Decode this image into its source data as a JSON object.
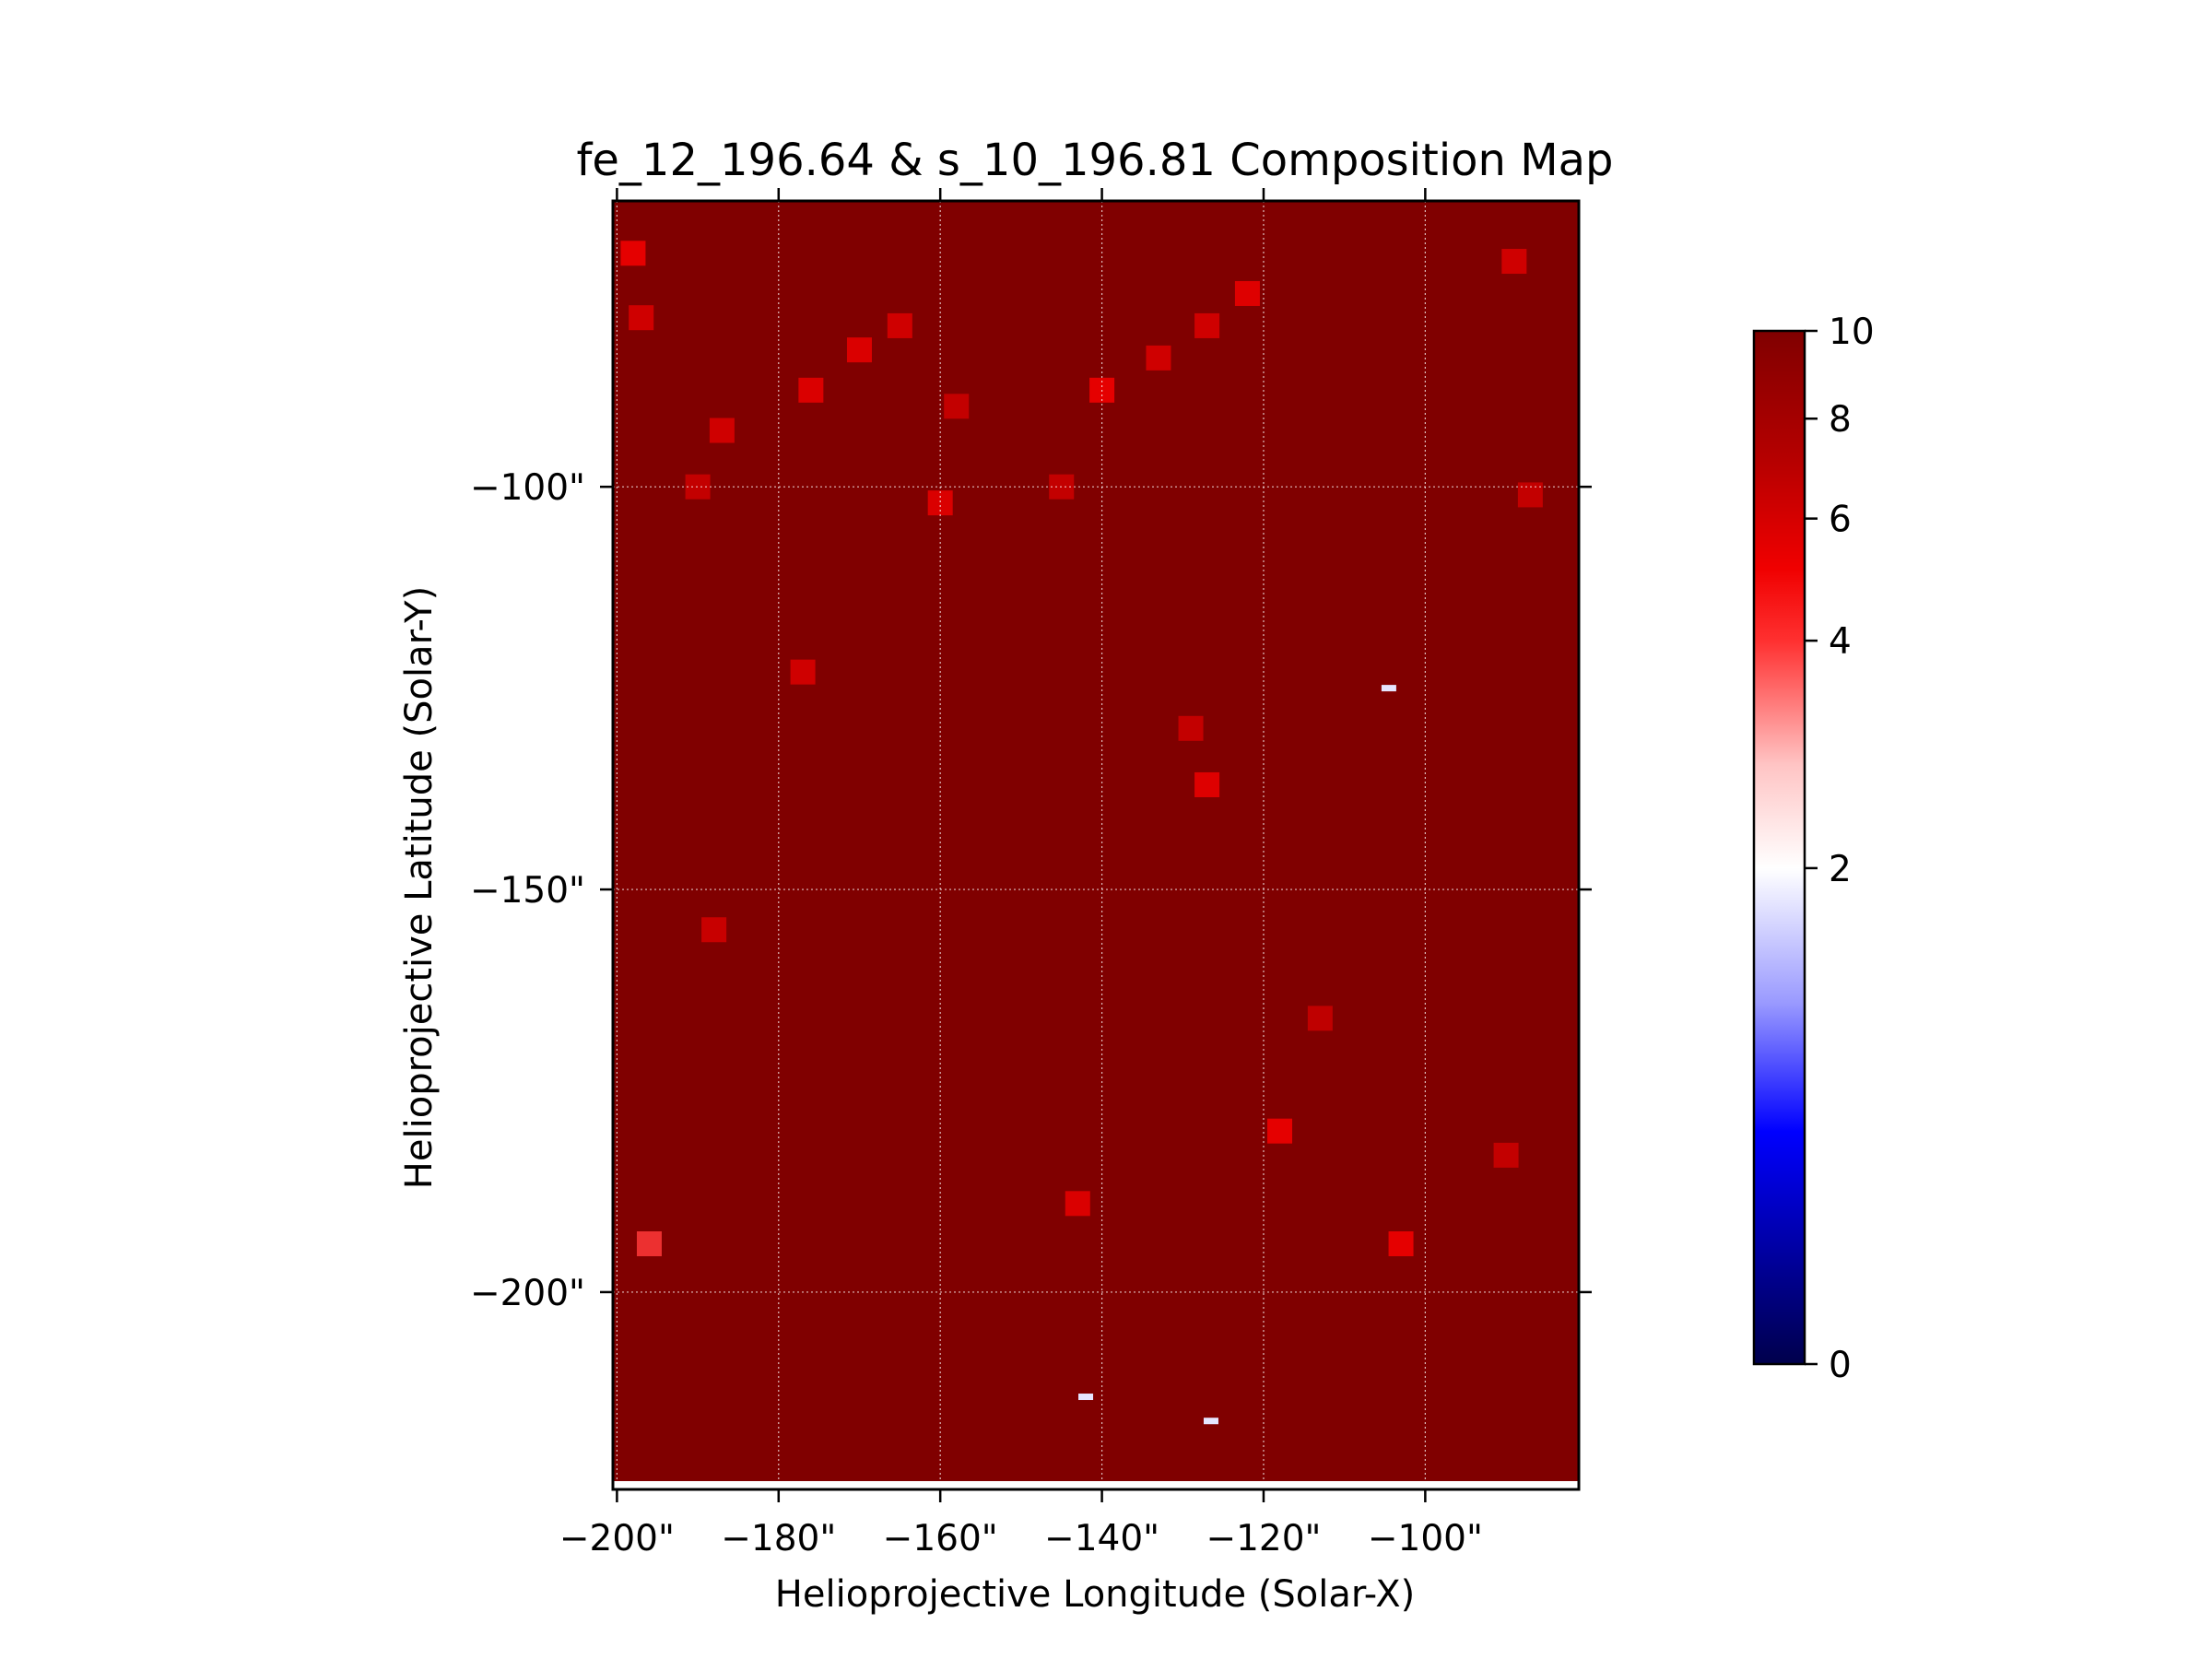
{
  "chart_data": {
    "type": "heatmap",
    "title": "fe_12_196.64 & s_10_196.81 Composition Map",
    "xlabel": "Helioprojective Longitude (Solar-X)",
    "ylabel": "Helioprojective Latitude (Solar-Y)",
    "x_ticks": [
      "−200\"",
      "−180\"",
      "−160\"",
      "−140\"",
      "−120\"",
      "−100\""
    ],
    "y_ticks": [
      "−100\"",
      "−150\"",
      "−200\""
    ],
    "x_tick_values": [
      -200,
      -180,
      -160,
      -140,
      -120,
      -100
    ],
    "y_tick_values": [
      -100,
      -150,
      -200
    ],
    "xlim": [
      -200.5,
      -81
    ],
    "ylim": [
      -224.5,
      -64.5
    ],
    "grid": true,
    "background_value": 10,
    "colorbar": {
      "ticks": [
        "0",
        "2",
        "4",
        "6",
        "8",
        "10"
      ],
      "tick_values": [
        0,
        2,
        4,
        6,
        8,
        10
      ],
      "range": [
        0,
        10
      ],
      "center": 2,
      "colormap": "seismic",
      "colors": {
        "low": "#00004c",
        "mid": "#ffffff",
        "high": "#800000"
      }
    },
    "features": [
      {
        "label": "upper-left bright patch",
        "x": -198,
        "y": -71,
        "value": 5.5
      },
      {
        "label": "upper-left bright patch",
        "x": -197,
        "y": -79,
        "value": 6.5
      },
      {
        "label": "left column enhancement",
        "x": -187,
        "y": -93,
        "value": 6.5
      },
      {
        "label": "left column enhancement",
        "x": -190,
        "y": -100,
        "value": 7.0
      },
      {
        "label": "upper arc",
        "x": -170,
        "y": -83,
        "value": 6.0
      },
      {
        "label": "upper arc",
        "x": -176,
        "y": -88,
        "value": 6.0
      },
      {
        "label": "upper arc",
        "x": -165,
        "y": -80,
        "value": 6.5
      },
      {
        "label": "upper arc",
        "x": -158,
        "y": -90,
        "value": 7.0
      },
      {
        "label": "diagonal loop",
        "x": -140,
        "y": -88,
        "value": 5.5
      },
      {
        "label": "diagonal loop",
        "x": -133,
        "y": -84,
        "value": 6.5
      },
      {
        "label": "diagonal loop",
        "x": -127,
        "y": -80,
        "value": 6.5
      },
      {
        "label": "diagonal loop",
        "x": -122,
        "y": -76,
        "value": 5.8
      },
      {
        "label": "central patch",
        "x": -160,
        "y": -102,
        "value": 6.0
      },
      {
        "label": "central patch",
        "x": -145,
        "y": -100,
        "value": 7.0
      },
      {
        "label": "right edge patch",
        "x": -87,
        "y": -101,
        "value": 7.0
      },
      {
        "label": "upper-right spot",
        "x": -89,
        "y": -72,
        "value": 6.5
      },
      {
        "label": "mid-left spot",
        "x": -177,
        "y": -123,
        "value": 6.5
      },
      {
        "label": "mid spot",
        "x": -127,
        "y": -137,
        "value": 5.8
      },
      {
        "label": "mid spot",
        "x": -129,
        "y": -130,
        "value": 7.0
      },
      {
        "label": "left lower spot",
        "x": -188,
        "y": -155,
        "value": 6.8
      },
      {
        "label": "lower-right spot",
        "x": -118,
        "y": -180,
        "value": 5.5
      },
      {
        "label": "lower spot",
        "x": -143,
        "y": -189,
        "value": 6.0
      },
      {
        "label": "horizontal band",
        "x": -196,
        "y": -194,
        "value": 4.5
      },
      {
        "label": "horizontal band",
        "x": -103,
        "y": -194,
        "value": 5.5
      },
      {
        "label": "right spot",
        "x": -113,
        "y": -166,
        "value": 7.2
      },
      {
        "label": "right spot",
        "x": -90,
        "y": -183,
        "value": 7.0
      }
    ],
    "low_pixels": [
      {
        "x": -104.5,
        "y": -125,
        "value": 1.8
      },
      {
        "x": -142,
        "y": -213,
        "value": 1.8
      },
      {
        "x": -126.5,
        "y": -216,
        "value": 1.8
      },
      {
        "x": -140,
        "y": -224,
        "value": 2.0
      }
    ]
  }
}
